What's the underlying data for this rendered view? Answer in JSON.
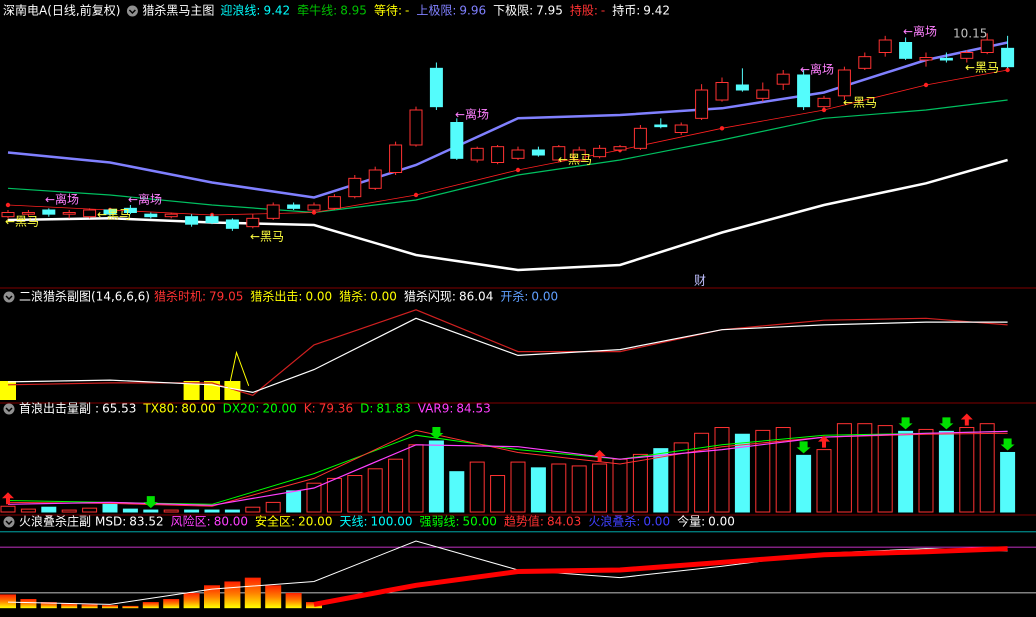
{
  "chart_data": [
    {
      "type": "candlestick",
      "title": "深南电A(日线,前复权)",
      "subtitle": "猎杀黑马主图",
      "readouts": [
        {
          "label": "迎浪线:",
          "value": "9.42",
          "color": "#00ffff"
        },
        {
          "label": "牵牛线:",
          "value": "8.95",
          "color": "#00c000"
        },
        {
          "label": "等待:",
          "value": "-",
          "color": "#ffff00"
        },
        {
          "label": "上极限:",
          "value": "9.96",
          "color": "#8080ff"
        },
        {
          "label": "下极限:",
          "value": "7.95",
          "color": "#ffffff"
        },
        {
          "label": "持股:",
          "value": "-",
          "color": "#ff3232"
        },
        {
          "label": "持币:",
          "value": "9.42",
          "color": "#ffffff"
        }
      ],
      "open": [
        7.95,
        7.98,
        8.03,
        7.98,
        7.95,
        8.03,
        8.05,
        7.98,
        7.95,
        7.95,
        7.95,
        7.91,
        7.83,
        7.93,
        8.09,
        8.03,
        8.05,
        8.19,
        8.29,
        8.48,
        8.81,
        9.73,
        9.08,
        8.63,
        8.6,
        8.65,
        8.75,
        8.63,
        8.63,
        8.67,
        8.75,
        8.77,
        9.05,
        8.96,
        9.13,
        9.35,
        9.53,
        9.37,
        9.54,
        9.65,
        9.27,
        9.4,
        9.73,
        9.92,
        10.04,
        9.83,
        9.85,
        9.85,
        9.92,
        9.97
      ],
      "high": [
        8.03,
        8.03,
        8.05,
        8.03,
        8.05,
        8.05,
        8.09,
        8.0,
        8.0,
        7.98,
        7.98,
        7.93,
        7.98,
        8.12,
        8.12,
        8.12,
        8.22,
        8.45,
        8.55,
        8.85,
        9.27,
        9.8,
        9.13,
        8.79,
        8.81,
        8.79,
        8.79,
        8.81,
        8.79,
        8.81,
        8.81,
        9.05,
        9.13,
        9.08,
        9.54,
        9.62,
        9.73,
        9.56,
        9.71,
        9.71,
        9.4,
        9.75,
        9.92,
        10.12,
        10.1,
        9.92,
        9.92,
        9.95,
        10.15,
        10.12
      ],
      "low": [
        7.93,
        7.95,
        7.95,
        7.93,
        7.93,
        7.95,
        7.98,
        7.93,
        7.93,
        7.83,
        7.86,
        7.78,
        7.81,
        7.91,
        8.03,
        8.0,
        8.03,
        8.17,
        8.27,
        8.45,
        8.79,
        9.23,
        8.63,
        8.6,
        8.58,
        8.63,
        8.67,
        8.6,
        8.6,
        8.65,
        8.72,
        8.75,
        9.01,
        8.93,
        9.11,
        9.33,
        9.45,
        9.33,
        9.47,
        9.23,
        9.23,
        9.35,
        9.71,
        9.87,
        9.83,
        9.75,
        9.8,
        9.8,
        9.9,
        9.73
      ],
      "close": [
        8.0,
        8.0,
        7.98,
        8.0,
        8.03,
        7.98,
        8.0,
        7.95,
        7.98,
        7.86,
        7.88,
        7.81,
        7.93,
        8.09,
        8.05,
        8.09,
        8.19,
        8.41,
        8.51,
        8.81,
        9.23,
        9.27,
        8.65,
        8.77,
        8.79,
        8.75,
        8.69,
        8.79,
        8.75,
        8.77,
        8.79,
        9.01,
        9.03,
        9.05,
        9.47,
        9.56,
        9.47,
        9.47,
        9.66,
        9.27,
        9.37,
        9.71,
        9.87,
        10.07,
        9.85,
        9.86,
        9.83,
        9.92,
        10.07,
        9.75
      ],
      "ylim": [
        7.13,
        10.31
      ],
      "up_color": "#ff3232",
      "down_color": "#54fcfc",
      "lines": [
        {
          "x": [
            0,
            5,
            10,
            15,
            20,
            25,
            30,
            35,
            40,
            45,
            49
          ],
          "values": [
            8.72,
            8.6,
            8.36,
            8.18,
            8.57,
            9.13,
            9.17,
            9.25,
            9.44,
            9.83,
            10.04
          ],
          "color": "#8080ff",
          "width": 2.5
        },
        {
          "x": [
            0,
            5,
            10,
            15,
            20,
            25,
            30,
            35,
            40,
            45,
            49
          ],
          "values": [
            7.91,
            7.93,
            7.88,
            7.85,
            7.49,
            7.31,
            7.37,
            7.76,
            8.09,
            8.35,
            8.63
          ],
          "color": "#ffffff",
          "width": 2.5
        },
        {
          "x": [
            0,
            5,
            10,
            15,
            20,
            25,
            30,
            35,
            40,
            45,
            49
          ],
          "values": [
            8.29,
            8.21,
            8.09,
            8.0,
            8.15,
            8.45,
            8.63,
            8.87,
            9.13,
            9.23,
            9.35
          ],
          "color": "#00c060",
          "width": 1.2
        },
        {
          "x": [
            0,
            5,
            10,
            15,
            20,
            25,
            30,
            35,
            40,
            45,
            49
          ],
          "values": [
            8.09,
            8.03,
            7.97,
            8.0,
            8.21,
            8.51,
            8.75,
            9.01,
            9.23,
            9.53,
            9.71
          ],
          "color": "#ff2020",
          "width": 0.8,
          "dots": true
        }
      ],
      "annotations": [
        {
          "text": "←离场",
          "color": "#ff80ff"
        },
        {
          "text": "←离场",
          "color": "#ff80ff"
        },
        {
          "text": "←离场",
          "color": "#ff80ff"
        },
        {
          "text": "←离场",
          "color": "#ff80ff"
        },
        {
          "text": "←离场",
          "color": "#ff80ff"
        },
        {
          "text": "←黑马",
          "color": "#ffff40"
        },
        {
          "text": "←黑马",
          "color": "#ffff40"
        },
        {
          "text": "←黑马",
          "color": "#ffff40"
        },
        {
          "text": "←黑马",
          "color": "#ffff40"
        },
        {
          "text": "←黑马",
          "color": "#ffff40"
        },
        {
          "text": "←黑马",
          "color": "#ffff40"
        },
        {
          "text": "10.15",
          "color": "#c0c0c0"
        },
        {
          "text": "财",
          "color": "#c0c0ff"
        }
      ]
    },
    {
      "type": "line",
      "title": "二浪猎杀副图(14,6,6,6)",
      "readouts": [
        {
          "label": "猎杀时机:",
          "value": "79.05",
          "color": "#ff3232"
        },
        {
          "label": "猎杀出击:",
          "value": "0.00",
          "color": "#ffff00"
        },
        {
          "label": "猎杀:",
          "value": "0.00",
          "color": "#ffff00"
        },
        {
          "label": "猎杀闪现:",
          "value": "86.04",
          "color": "#ffffff"
        },
        {
          "label": "开杀:",
          "value": "0.00",
          "color": "#60a0ff"
        }
      ],
      "ylim": [
        0,
        100
      ],
      "bars": {
        "x": [
          0,
          9,
          10,
          11
        ],
        "values": [
          20,
          20,
          20,
          20
        ],
        "color": "#ffff00"
      },
      "lines": [
        {
          "x": [
            0,
            5,
            10,
            12,
            15,
            20,
            25,
            30,
            35,
            40,
            45,
            49
          ],
          "values": [
            16,
            18,
            18,
            5,
            58,
            95,
            51,
            51,
            74,
            84,
            86,
            79
          ],
          "color": "#d02020",
          "width": 1.2
        },
        {
          "x": [
            0,
            5,
            10,
            12,
            15,
            20,
            25,
            30,
            35,
            40,
            45,
            49
          ],
          "values": [
            19,
            21,
            16,
            8,
            32,
            86,
            47,
            53,
            74,
            79,
            82,
            82
          ],
          "color": "#ffffff",
          "width": 1.2
        },
        {
          "x": [
            10.7,
            11.2,
            11.8
          ],
          "values": [
            0,
            50,
            15
          ],
          "color": "#ffff00",
          "width": 1
        }
      ]
    },
    {
      "type": "bar",
      "title": "首浪出击量副",
      "readouts": [
        {
          "label": ":",
          "value": "65.53",
          "color": "#ffffff"
        },
        {
          "label": "TX80:",
          "value": "80.00",
          "color": "#ffff00"
        },
        {
          "label": "DX20:",
          "value": "20.00",
          "color": "#00ff00"
        },
        {
          "label": "K:",
          "value": "79.36",
          "color": "#ff3232"
        },
        {
          "label": "D:",
          "value": "81.83",
          "color": "#00ff00"
        },
        {
          "label": "VAR9:",
          "value": "84.53",
          "color": "#ff40ff"
        }
      ],
      "ylim": [
        0,
        100
      ],
      "values": [
        6,
        3,
        5,
        2,
        4,
        8,
        3,
        2,
        2,
        2,
        2,
        2,
        5,
        10,
        22,
        30,
        35,
        38,
        45,
        55,
        70,
        74,
        42,
        52,
        38,
        52,
        46,
        50,
        48,
        50,
        55,
        60,
        66,
        72,
        82,
        88,
        81,
        85,
        88,
        59,
        65,
        92,
        92,
        90,
        84,
        86,
        84,
        88,
        92,
        62
      ],
      "lines": [
        {
          "x": [
            0,
            5,
            10,
            15,
            20,
            25,
            30,
            35,
            40,
            45,
            49
          ],
          "values": [
            12,
            10,
            8,
            40,
            80,
            65,
            55,
            70,
            80,
            82,
            84
          ],
          "color": "#00ff00",
          "width": 1
        },
        {
          "x": [
            0,
            5,
            10,
            15,
            20,
            25,
            30,
            35,
            40,
            45,
            49
          ],
          "values": [
            10,
            9,
            6,
            35,
            85,
            62,
            50,
            68,
            78,
            81,
            82
          ],
          "color": "#ff3232",
          "width": 1
        },
        {
          "x": [
            0,
            5,
            10,
            15,
            20,
            25,
            30,
            35,
            40,
            45,
            49
          ],
          "values": [
            8,
            10,
            7,
            25,
            70,
            68,
            55,
            65,
            78,
            82,
            84
          ],
          "color": "#ff40ff",
          "width": 1.2
        }
      ],
      "signals": [
        {
          "x": [
            7,
            21,
            39,
            44,
            46,
            49
          ],
          "color": "#00e000",
          "direction": "down"
        },
        {
          "x": [
            0,
            29,
            40,
            47
          ],
          "color": "#ff2020",
          "direction": "up"
        }
      ]
    },
    {
      "type": "line",
      "title": "火浪叠杀庄副",
      "readouts": [
        {
          "label": "MSD:",
          "value": "83.52",
          "color": "#ffffff"
        },
        {
          "label": "风险区:",
          "value": "80.00",
          "color": "#ff40ff"
        },
        {
          "label": "安全区:",
          "value": "20.00",
          "color": "#ffff00"
        },
        {
          "label": "天线:",
          "value": "100.00",
          "color": "#00ffff"
        },
        {
          "label": "强弱线:",
          "value": "50.00",
          "color": "#00ff00"
        },
        {
          "label": "趋势值:",
          "value": "84.03",
          "color": "#ff3232"
        },
        {
          "label": "火浪叠杀:",
          "value": "0.00",
          "color": "#4040ff"
        },
        {
          "label": "今量:",
          "value": "0.00",
          "color": "#ffffff"
        }
      ],
      "ylim": [
        -5,
        105
      ],
      "levels": [
        {
          "value": 100,
          "color": "#00c0c0"
        },
        {
          "value": 80,
          "color": "#ff40ff"
        },
        {
          "value": 20,
          "color": "#ffffff"
        }
      ],
      "bars": {
        "x": [
          0,
          1,
          2,
          3,
          4,
          5,
          6,
          7,
          8,
          9,
          10,
          11,
          12,
          13,
          14,
          15
        ],
        "values": [
          18,
          12,
          8,
          6,
          5,
          4,
          3,
          8,
          12,
          20,
          30,
          35,
          40,
          30,
          20,
          8
        ],
        "color": "url(#fire)"
      },
      "lines": [
        {
          "x": [
            0,
            5,
            10,
            15,
            20,
            25,
            30,
            35,
            40,
            45,
            49
          ],
          "values": [
            8,
            5,
            25,
            35,
            88,
            50,
            40,
            55,
            72,
            78,
            75
          ],
          "color": "#ffffff",
          "width": 1
        },
        {
          "x": [
            15,
            20,
            25,
            30,
            35,
            40,
            45,
            49
          ],
          "values": [
            5,
            30,
            48,
            50,
            60,
            70,
            74,
            78
          ],
          "color": "#ff0000",
          "width": 5
        }
      ]
    }
  ]
}
